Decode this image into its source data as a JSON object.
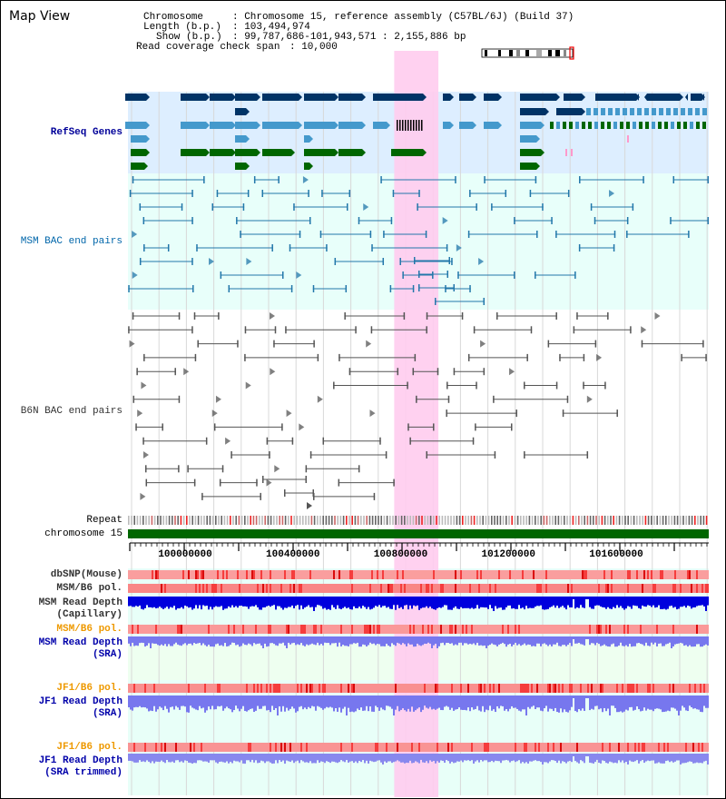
{
  "page": {
    "title": "Map View"
  },
  "info": {
    "chromosome_key": "Chromosome",
    "chromosome_value": ": Chromosome 15, reference assembly (C57BL/6J) (Build 37)",
    "length_key": "Length (b.p.)",
    "length_value": ": 103,494,974",
    "show_key": "Show (b.p.)",
    "show_value": ": 99,787,686-101,943,571 : 2,155,886 bp",
    "span_key": "Read coverage check span",
    "span_value": ": 10,000"
  },
  "tracks": {
    "refseq": {
      "label": "RefSeq Genes",
      "color": "#000099"
    },
    "msm_bac": {
      "label": "MSM BAC end pairs",
      "color": "#0066aa"
    },
    "b6n_bac": {
      "label": "B6N BAC end pairs",
      "color": "#333333"
    },
    "repeat": {
      "label": "Repeat"
    },
    "chromosome": {
      "label": "chromosome 15",
      "color": "#006600"
    },
    "dbsnp": {
      "label": "dbSNP(Mouse)"
    },
    "msm_b6_pol_1": {
      "label": "MSM/B6 pol."
    },
    "msm_read_depth_cap": {
      "label_line1": "MSM Read Depth",
      "label_line2": "(Capillary)"
    },
    "msm_b6_pol_2": {
      "label": "MSM/B6 pol.",
      "color": "#ee9900"
    },
    "msm_read_depth_sra": {
      "label_line1": "MSM Read Depth",
      "label_line2": "(SRA)",
      "color": "#0000aa"
    },
    "jf1_b6_pol_1": {
      "label": "JF1/B6 pol.",
      "color": "#ee9900"
    },
    "jf1_read_depth_sra": {
      "label_line1": "JF1 Read Depth",
      "label_line2": "(SRA)",
      "color": "#0000aa"
    },
    "jf1_b6_pol_2": {
      "label": "JF1/B6 pol.",
      "color": "#ee9900"
    },
    "jf1_read_depth_trim": {
      "label_line1": "JF1 Read Depth",
      "label_line2": "(SRA trimmed)",
      "color": "#0000aa"
    }
  },
  "axis": {
    "ticks": [
      "100000000",
      "100400000",
      "100800000",
      "101200000",
      "101600000"
    ]
  },
  "view": {
    "start": 99787686,
    "end": 101943571,
    "highlight_start": 100776000,
    "highlight_end": 100940000
  },
  "colors": {
    "highlight": "#ffccee",
    "refseq_bg": "#ddeeff",
    "bac_bg": "#e8fffa",
    "gene_dark": "#003366",
    "gene_light": "#4499cc",
    "gene_green": "#006600",
    "depth_blue": "#0000dd",
    "depth_light": "#7777ee"
  }
}
